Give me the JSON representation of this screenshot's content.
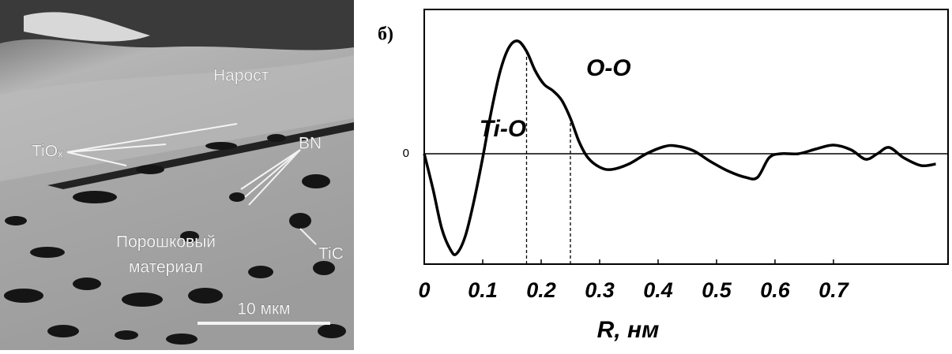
{
  "micrograph": {
    "labels": {
      "overgrowth": "Нарост",
      "tiox": "TiOₓ",
      "bn": "BN",
      "powder_line1": "Порошковый",
      "powder_line2": "материал",
      "tic": "TiC",
      "scale": "10 мкм"
    }
  },
  "chart_data": {
    "type": "line",
    "panel_label": "б)",
    "x_label": "R, нм",
    "color": "#000000",
    "x": [
      0,
      0.015,
      0.03,
      0.045,
      0.055,
      0.07,
      0.085,
      0.1,
      0.115,
      0.13,
      0.145,
      0.16,
      0.175,
      0.19,
      0.205,
      0.22,
      0.235,
      0.25,
      0.265,
      0.28,
      0.3,
      0.32,
      0.35,
      0.38,
      0.41,
      0.43,
      0.46,
      0.49,
      0.52,
      0.55,
      0.57,
      0.59,
      0.61,
      0.64,
      0.67,
      0.7,
      0.73,
      0.755,
      0.775,
      0.795,
      0.82,
      0.85,
      0.875
    ],
    "values": [
      0,
      -0.45,
      -0.95,
      -1.22,
      -1.27,
      -1.05,
      -0.6,
      -0.05,
      0.55,
      1.05,
      1.35,
      1.43,
      1.3,
      1.05,
      0.88,
      0.8,
      0.68,
      0.45,
      0.15,
      -0.05,
      -0.17,
      -0.2,
      -0.13,
      0,
      0.09,
      0.1,
      0.04,
      -0.1,
      -0.22,
      -0.3,
      -0.3,
      -0.05,
      0,
      0,
      0.06,
      0.11,
      0.05,
      -0.07,
      0,
      0.08,
      -0.05,
      -0.15,
      -0.13
    ],
    "xlim": [
      0,
      0.896
    ],
    "ylim": [
      -1.4,
      1.83
    ],
    "xticks": [
      0,
      0.1,
      0.2,
      0.3,
      0.4,
      0.5,
      0.6,
      0.7
    ],
    "yticks": [
      0
    ],
    "markers": [
      {
        "x": 0.175,
        "label": "Ti-O"
      },
      {
        "x": 0.25,
        "label": "O-O"
      }
    ]
  }
}
